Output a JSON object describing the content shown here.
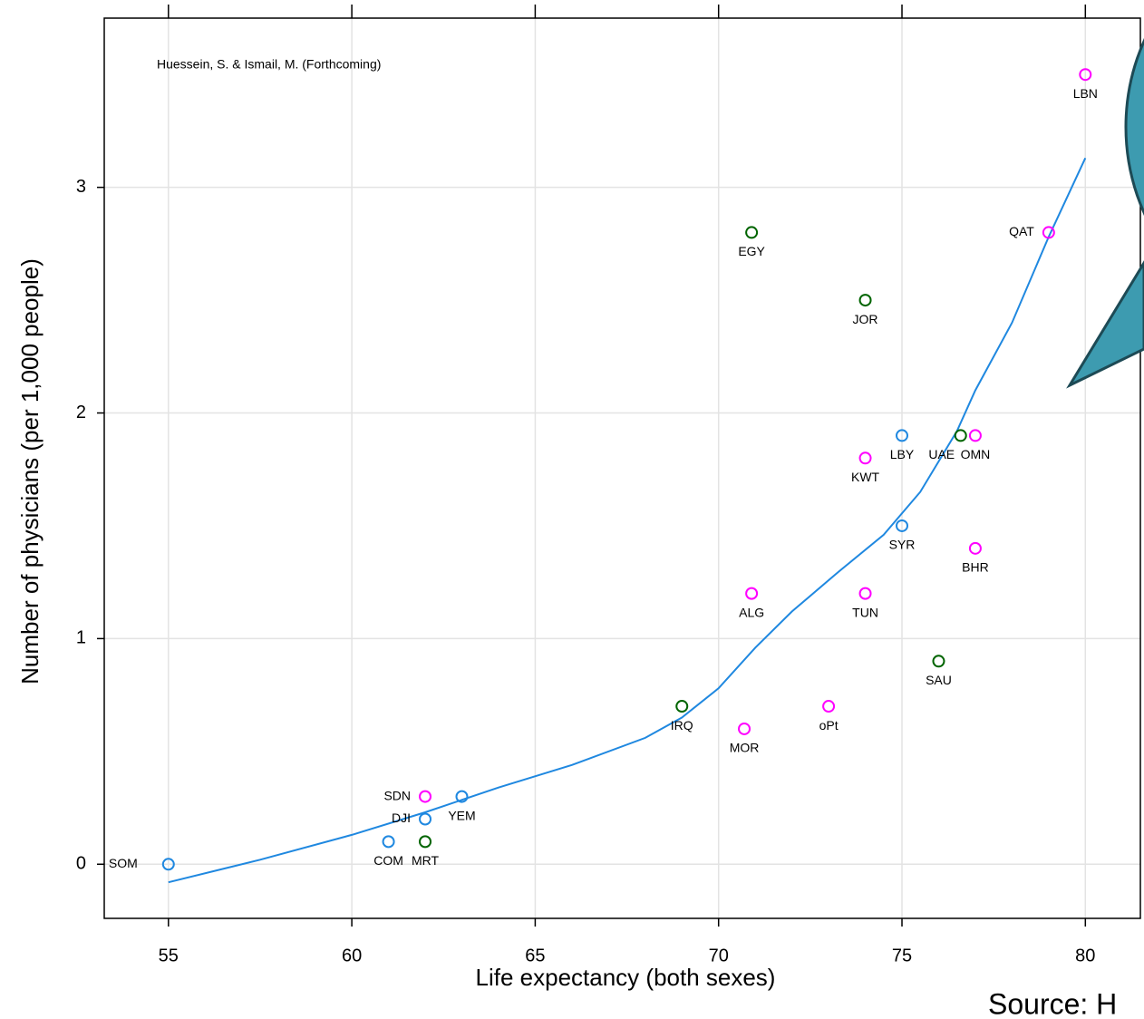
{
  "chart_data": {
    "type": "scatter",
    "x_label": "Life expectancy (both sexes)",
    "y_label": "Number of physicians (per 1,000 people)",
    "annotation": "Huessein, S. & Ismail, M. (Forthcoming)",
    "source": "Source: H",
    "xlim": [
      53.25,
      81.5
    ],
    "ylim": [
      -0.24,
      3.75
    ],
    "xticks": [
      55,
      60,
      65,
      70,
      75,
      80
    ],
    "yticks": [
      0,
      1,
      2,
      3
    ],
    "grid": true,
    "series": [
      {
        "color": "#1f88e0",
        "x": [
          55,
          61,
          62,
          63,
          75,
          75
        ],
        "values": [
          0,
          0.1,
          0.2,
          0.3,
          1.9,
          1.5
        ],
        "labels": [
          "SOM",
          "COM",
          "DJI",
          "YEM",
          "LBY",
          "SYR"
        ]
      },
      {
        "color": "#ff00ff",
        "x": [
          62,
          70.7,
          73,
          70.9,
          74,
          74,
          77,
          77,
          79,
          80
        ],
        "values": [
          0.3,
          0.6,
          0.7,
          1.2,
          1.2,
          1.8,
          1.9,
          1.4,
          2.8,
          3.5
        ],
        "labels": [
          "SDN",
          "MOR",
          "oPt",
          "ALG",
          "TUN",
          "KWT",
          "OMN",
          "BHR",
          "QAT",
          "LBN"
        ]
      },
      {
        "color": "#006400",
        "x": [
          62,
          69,
          76,
          76.6,
          70.9,
          74
        ],
        "values": [
          0.1,
          0.7,
          0.9,
          1.9,
          2.8,
          2.5
        ],
        "labels": [
          "MRT",
          "IRQ",
          "SAU",
          "UAE",
          "EGY",
          "JOR"
        ]
      }
    ],
    "fit": {
      "color": "#1f88e0",
      "x": [
        55,
        57.5,
        60,
        62,
        64,
        66,
        68,
        69,
        70,
        71,
        72,
        73.3,
        74.5,
        75.5,
        76.5,
        77,
        78,
        79,
        80
      ],
      "values": [
        -0.08,
        0.02,
        0.13,
        0.23,
        0.34,
        0.44,
        0.56,
        0.65,
        0.78,
        0.96,
        1.12,
        1.3,
        1.46,
        1.65,
        1.92,
        2.1,
        2.4,
        2.78,
        3.13
      ]
    }
  }
}
